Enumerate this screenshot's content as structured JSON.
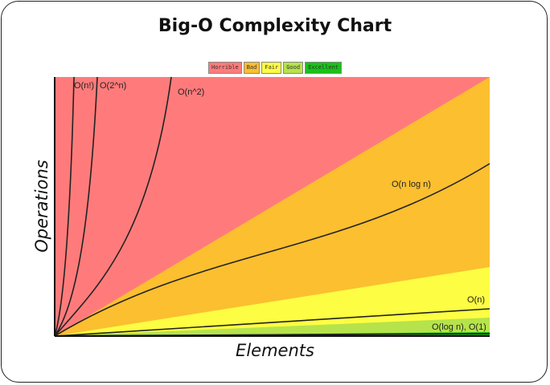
{
  "title": "Big-O Complexity Chart",
  "legend": [
    {
      "label": "Horrible",
      "color": "#ff7b7b"
    },
    {
      "label": "Bad",
      "color": "#fbbf30"
    },
    {
      "label": "Fair",
      "color": "#fdfd43"
    },
    {
      "label": "Good",
      "color": "#b6e34b"
    },
    {
      "label": "Excellent",
      "color": "#16c416"
    }
  ],
  "chart_data": {
    "type": "line",
    "title": "Big-O Complexity Chart",
    "xlabel": "Elements",
    "ylabel": "Operations",
    "grid": false,
    "legend_placement": "top-center",
    "regions": [
      {
        "name": "Horrible",
        "color": "#ff7b7b"
      },
      {
        "name": "Bad",
        "color": "#fbbf30"
      },
      {
        "name": "Fair",
        "color": "#fdfd43"
      },
      {
        "name": "Good",
        "color": "#b6e34b"
      },
      {
        "name": "Excellent",
        "color": "#16c416"
      }
    ],
    "series": [
      {
        "name": "O(n!)"
      },
      {
        "name": "O(2^n)"
      },
      {
        "name": "O(n^2)"
      },
      {
        "name": "O(n log n)"
      },
      {
        "name": "O(n)"
      },
      {
        "name": "O(log n), O(1)"
      }
    ]
  }
}
